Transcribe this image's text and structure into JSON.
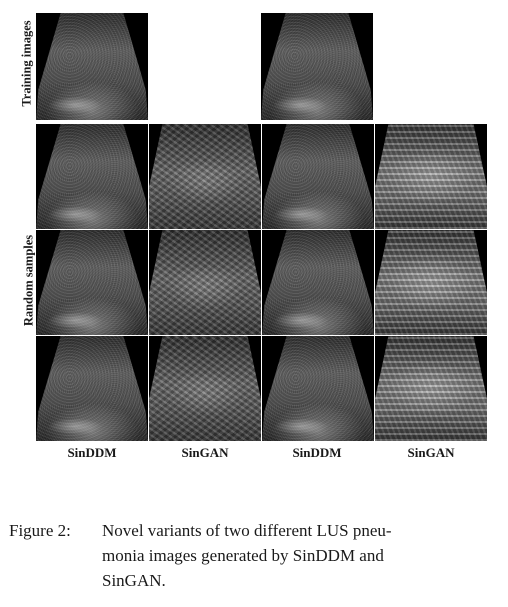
{
  "figure": {
    "row_labels": {
      "training": "Training images",
      "random": "Random samples"
    },
    "column_labels": [
      "SinDDM",
      "SinGAN",
      "SinDDM",
      "SinGAN"
    ],
    "caption": {
      "label": "Figure 2:",
      "lines": [
        "Novel variants of two different LUS pneu-",
        "monia images generated by SinDDM and",
        "SinGAN."
      ]
    }
  }
}
